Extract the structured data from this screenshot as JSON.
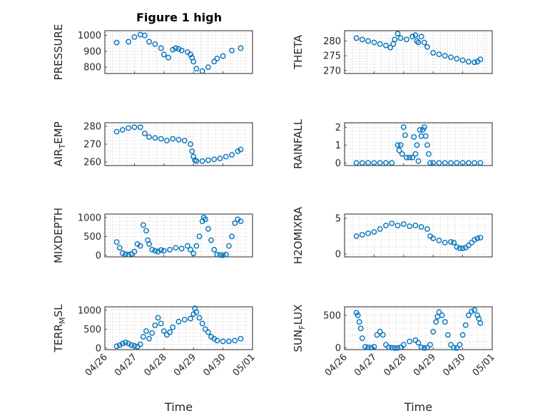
{
  "figure_title": "Figure 1 high",
  "colors": {
    "marker": "#0072BD",
    "axes": "#262626",
    "grid": "#c8c8c8"
  },
  "chart_data": [
    {
      "type": "scatter",
      "title": "Figure 1 high",
      "ylabel": "PRESSURE",
      "xlabel": "",
      "ylim": [
        760,
        1030
      ],
      "yticks": [
        800,
        900,
        1000
      ],
      "xlim": [
        "04/26",
        "05/01"
      ],
      "xticks": [
        "04/26",
        "04/27",
        "04/28",
        "04/29",
        "04/30",
        "05/01"
      ],
      "show_xticklabels": false,
      "grid": true,
      "x": [
        0.4,
        0.8,
        1.0,
        1.2,
        1.35,
        1.5,
        1.7,
        1.9,
        2.0,
        2.15,
        2.3,
        2.4,
        2.5,
        2.6,
        2.8,
        2.9,
        2.95,
        3.0,
        3.1,
        3.3,
        3.5,
        3.7,
        3.8,
        4.0,
        4.3,
        4.6
      ],
      "y": [
        955,
        960,
        990,
        1005,
        1000,
        960,
        945,
        920,
        880,
        860,
        910,
        920,
        915,
        905,
        895,
        880,
        860,
        835,
        790,
        775,
        800,
        835,
        855,
        870,
        905,
        920
      ]
    },
    {
      "type": "scatter",
      "title": "",
      "ylabel": "THETA",
      "xlabel": "",
      "ylim": [
        269,
        283.5
      ],
      "yticks": [
        270,
        275,
        280
      ],
      "xlim": [
        "04/26",
        "05/01"
      ],
      "xticks": [
        "04/26",
        "04/27",
        "04/28",
        "04/29",
        "04/30",
        "05/01"
      ],
      "show_xticklabels": false,
      "grid": true,
      "x": [
        0.4,
        0.6,
        0.8,
        1.0,
        1.2,
        1.4,
        1.55,
        1.65,
        1.7,
        1.8,
        1.9,
        2.1,
        2.3,
        2.4,
        2.45,
        2.5,
        2.6,
        2.7,
        2.8,
        3.0,
        3.2,
        3.4,
        3.6,
        3.8,
        4.0,
        4.2,
        4.4,
        4.5,
        4.6
      ],
      "y": [
        281,
        280.5,
        280,
        279.5,
        279,
        278.5,
        277.8,
        279,
        280.5,
        282.5,
        281,
        280.5,
        281.5,
        282,
        280,
        279.5,
        281.5,
        279.5,
        278,
        276,
        275.5,
        275,
        274.5,
        274,
        273.5,
        273,
        272.8,
        273,
        273.8
      ]
    },
    {
      "type": "scatter",
      "title": "",
      "ylabel": "AIR_TEMP",
      "ylabel_base": "AIR",
      "ylabel_sub": "T",
      "ylabel_rest": "EMP",
      "xlabel": "",
      "ylim": [
        258,
        282
      ],
      "yticks": [
        260,
        270,
        280
      ],
      "xlim": [
        "04/26",
        "05/01"
      ],
      "xticks": [
        "04/26",
        "04/27",
        "04/28",
        "04/29",
        "04/30",
        "05/01"
      ],
      "show_xticklabels": false,
      "grid": true,
      "x": [
        0.4,
        0.6,
        0.8,
        1.0,
        1.2,
        1.35,
        1.5,
        1.7,
        1.9,
        2.1,
        2.3,
        2.5,
        2.7,
        2.9,
        2.95,
        3.0,
        3.05,
        3.1,
        3.3,
        3.5,
        3.7,
        3.9,
        4.1,
        4.3,
        4.5,
        4.6
      ],
      "y": [
        277,
        278,
        279,
        279.5,
        279.5,
        276,
        274,
        273.5,
        273,
        272,
        273,
        272.5,
        272,
        270,
        266,
        263,
        261,
        260.5,
        260.5,
        261,
        261.5,
        262,
        263,
        264,
        266,
        267
      ]
    },
    {
      "type": "scatter",
      "title": "",
      "ylabel": "RAINFALL",
      "xlabel": "",
      "ylim": [
        -0.15,
        2.25
      ],
      "yticks": [
        0,
        1,
        2
      ],
      "xlim": [
        "04/26",
        "05/01"
      ],
      "xticks": [
        "04/26",
        "04/27",
        "04/28",
        "04/29",
        "04/30",
        "05/01"
      ],
      "show_xticklabels": false,
      "grid": true,
      "x": [
        0.4,
        0.6,
        0.8,
        1.0,
        1.2,
        1.4,
        1.6,
        1.8,
        1.85,
        1.9,
        1.95,
        2.0,
        2.05,
        2.1,
        2.2,
        2.3,
        2.35,
        2.4,
        2.45,
        2.5,
        2.55,
        2.6,
        2.65,
        2.7,
        2.75,
        2.8,
        2.85,
        2.9,
        3.0,
        3.2,
        3.4,
        3.6,
        3.8,
        4.0,
        4.2,
        4.4,
        4.6
      ],
      "y": [
        0,
        0,
        0,
        0,
        0,
        0,
        0,
        1.0,
        0.7,
        1.0,
        0.5,
        2.0,
        1.55,
        0.3,
        0.3,
        0.3,
        1.45,
        0.5,
        1.0,
        0.1,
        1.85,
        1.5,
        1.85,
        2.0,
        1.5,
        1.0,
        0.5,
        0,
        0,
        0,
        0,
        0,
        0,
        0,
        0,
        0,
        0
      ]
    },
    {
      "type": "scatter",
      "title": "",
      "ylabel": "MIXDEPTH",
      "xlabel": "",
      "ylim": [
        -40,
        1090
      ],
      "yticks": [
        0,
        500,
        1000
      ],
      "xlim": [
        "04/26",
        "05/01"
      ],
      "xticks": [
        "04/26",
        "04/27",
        "04/28",
        "04/29",
        "04/30",
        "05/01"
      ],
      "show_xticklabels": false,
      "grid": true,
      "x": [
        0.4,
        0.5,
        0.6,
        0.7,
        0.8,
        0.9,
        1.0,
        1.1,
        1.2,
        1.3,
        1.4,
        1.45,
        1.5,
        1.6,
        1.7,
        1.8,
        1.9,
        2.0,
        2.2,
        2.4,
        2.6,
        2.8,
        2.9,
        3.0,
        3.1,
        3.2,
        3.3,
        3.35,
        3.4,
        3.5,
        3.6,
        3.7,
        3.8,
        3.9,
        4.0,
        4.1,
        4.2,
        4.3,
        4.4,
        4.5,
        4.6
      ],
      "y": [
        350,
        200,
        60,
        30,
        20,
        40,
        100,
        300,
        250,
        800,
        650,
        400,
        300,
        150,
        120,
        100,
        140,
        120,
        150,
        200,
        180,
        250,
        150,
        50,
        250,
        500,
        900,
        1000,
        950,
        700,
        400,
        150,
        20,
        10,
        5,
        20,
        250,
        500,
        850,
        950,
        900
      ]
    },
    {
      "type": "scatter",
      "title": "",
      "ylabel": "H2OMIXRA",
      "xlabel": "",
      "ylim": [
        -0.4,
        5.6
      ],
      "yticks": [
        0,
        5
      ],
      "xlim": [
        "04/26",
        "05/01"
      ],
      "xticks": [
        "04/26",
        "04/27",
        "04/28",
        "04/29",
        "04/30",
        "05/01"
      ],
      "show_xticklabels": false,
      "grid": true,
      "x": [
        0.4,
        0.6,
        0.8,
        1.0,
        1.2,
        1.4,
        1.6,
        1.8,
        2.0,
        2.2,
        2.4,
        2.6,
        2.8,
        2.9,
        3.0,
        3.2,
        3.4,
        3.6,
        3.7,
        3.8,
        3.9,
        4.0,
        4.1,
        4.2,
        4.3,
        4.4,
        4.5,
        4.6
      ],
      "y": [
        2.5,
        2.7,
        2.9,
        3.1,
        3.5,
        4.0,
        4.3,
        4.0,
        4.2,
        3.9,
        4.0,
        3.8,
        3.5,
        2.5,
        2.2,
        1.9,
        1.6,
        1.7,
        1.6,
        1.0,
        0.8,
        0.8,
        0.9,
        1.2,
        1.6,
        2.0,
        2.2,
        2.3
      ]
    },
    {
      "type": "scatter",
      "title": "",
      "ylabel": "TERR_MSL",
      "ylabel_base": "TERR",
      "ylabel_sub": "M",
      "ylabel_rest": "SL",
      "xlabel": "Time",
      "ylim": [
        -40,
        1090
      ],
      "yticks": [
        0,
        500,
        1000
      ],
      "xlim": [
        "04/26",
        "05/01"
      ],
      "xticks": [
        "04/26",
        "04/27",
        "04/28",
        "04/29",
        "04/30",
        "05/01"
      ],
      "show_xticklabels": true,
      "grid": true,
      "x": [
        0.4,
        0.5,
        0.6,
        0.7,
        0.8,
        0.9,
        1.0,
        1.1,
        1.2,
        1.3,
        1.4,
        1.5,
        1.6,
        1.7,
        1.8,
        1.9,
        2.0,
        2.1,
        2.2,
        2.3,
        2.5,
        2.7,
        2.9,
        3.0,
        3.05,
        3.1,
        3.2,
        3.3,
        3.4,
        3.5,
        3.6,
        3.7,
        3.8,
        4.0,
        4.2,
        4.4,
        4.6
      ],
      "y": [
        50,
        80,
        120,
        150,
        120,
        80,
        60,
        40,
        100,
        300,
        450,
        250,
        400,
        600,
        800,
        650,
        450,
        350,
        420,
        550,
        700,
        750,
        780,
        900,
        1050,
        950,
        800,
        650,
        500,
        420,
        300,
        250,
        200,
        180,
        180,
        200,
        250
      ]
    },
    {
      "type": "scatter",
      "title": "",
      "ylabel": "SUN_FLUX",
      "ylabel_base": "SUN",
      "ylabel_sub": "F",
      "ylabel_rest": "LUX",
      "xlabel": "Time",
      "ylim": [
        -25,
        630
      ],
      "yticks": [
        0,
        500
      ],
      "xlim": [
        "04/26",
        "05/01"
      ],
      "xticks": [
        "04/26",
        "04/27",
        "04/28",
        "04/29",
        "04/30",
        "05/01"
      ],
      "show_xticklabels": true,
      "grid": true,
      "x": [
        0.4,
        0.45,
        0.5,
        0.55,
        0.6,
        0.7,
        0.8,
        0.9,
        1.0,
        1.1,
        1.2,
        1.3,
        1.4,
        1.5,
        1.6,
        1.7,
        1.8,
        1.9,
        2.0,
        2.2,
        2.4,
        2.5,
        2.6,
        2.7,
        2.8,
        2.9,
        3.0,
        3.1,
        3.15,
        3.2,
        3.3,
        3.4,
        3.5,
        3.6,
        3.7,
        3.8,
        3.9,
        4.0,
        4.1,
        4.2,
        4.3,
        4.4,
        4.5,
        4.55,
        4.6
      ],
      "y": [
        540,
        500,
        400,
        300,
        150,
        20,
        10,
        5,
        20,
        200,
        250,
        200,
        50,
        10,
        5,
        0,
        0,
        10,
        50,
        100,
        120,
        80,
        10,
        0,
        5,
        50,
        250,
        400,
        480,
        550,
        500,
        400,
        200,
        50,
        5,
        0,
        50,
        200,
        350,
        500,
        560,
        580,
        500,
        450,
        380
      ]
    }
  ]
}
